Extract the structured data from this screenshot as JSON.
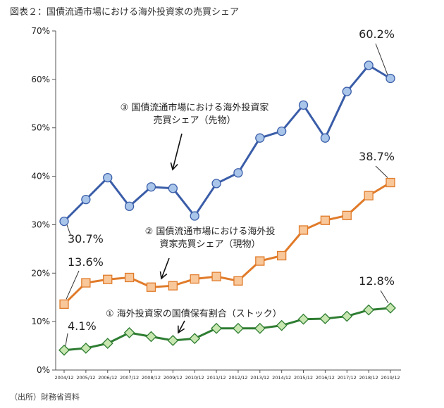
{
  "figure": {
    "title": "図表２：国債流通市場における海外投資家の売買シェア",
    "source": "（出所）財務省資料"
  },
  "chart_data": {
    "type": "line",
    "title": "図表２：国債流通市場における海外投資家の売買シェア",
    "xlabel": "",
    "ylabel": "",
    "ylim": [
      0,
      70
    ],
    "yticks": [
      "0%",
      "10%",
      "20%",
      "30%",
      "40%",
      "50%",
      "60%",
      "70%"
    ],
    "grid": false,
    "categories": [
      "2004/12",
      "2005/12",
      "2006/12",
      "2007/12",
      "2008/12",
      "2009/12",
      "2010/12",
      "2011/12",
      "2012/12",
      "2013/12",
      "2014/12",
      "2015/12",
      "2016/12",
      "2017/12",
      "2018/12",
      "2019/12"
    ],
    "series": [
      {
        "name": "① 海外投資家の国債保有割合（ストック）",
        "label_lines": [
          "① 海外投資家の国債保有割合（ストック）"
        ],
        "color": "#2e7d32",
        "fill": "#c8e6b0",
        "marker": "diamond",
        "values": [
          4.1,
          4.5,
          5.5,
          7.7,
          6.9,
          6.1,
          6.5,
          8.6,
          8.6,
          8.6,
          9.2,
          10.5,
          10.6,
          11.1,
          12.4,
          12.8
        ]
      },
      {
        "name": "② 国債流通市場における海外投資家売買シェア（現物）",
        "label_lines": [
          "② 国債流通市場における海外投",
          "資家売買シェア（現物）"
        ],
        "color": "#e07b2a",
        "fill": "#f8c79a",
        "marker": "square",
        "values": [
          13.6,
          18.0,
          18.7,
          19.1,
          17.1,
          17.4,
          18.8,
          19.3,
          18.4,
          22.5,
          23.6,
          28.9,
          30.9,
          31.9,
          36.0,
          38.7
        ]
      },
      {
        "name": "③ 国債流通市場における海外投資家売買シェア（先物）",
        "label_lines": [
          "③ 国債流通市場における海外投資家",
          "売買シェア（先物）"
        ],
        "color": "#3a5da8",
        "fill": "#a9c6ea",
        "marker": "circle",
        "values": [
          30.7,
          35.2,
          39.7,
          33.8,
          37.8,
          37.5,
          31.8,
          38.5,
          40.7,
          47.9,
          49.3,
          54.7,
          47.9,
          57.5,
          62.9,
          60.2
        ]
      }
    ],
    "annotations": [
      {
        "series": 2,
        "index": 0,
        "text": "30.7%"
      },
      {
        "series": 2,
        "index": 15,
        "text": "60.2%"
      },
      {
        "series": 1,
        "index": 0,
        "text": "13.6%"
      },
      {
        "series": 1,
        "index": 15,
        "text": "38.7%"
      },
      {
        "series": 0,
        "index": 0,
        "text": "4.1%"
      },
      {
        "series": 0,
        "index": 15,
        "text": "12.8%"
      }
    ]
  }
}
